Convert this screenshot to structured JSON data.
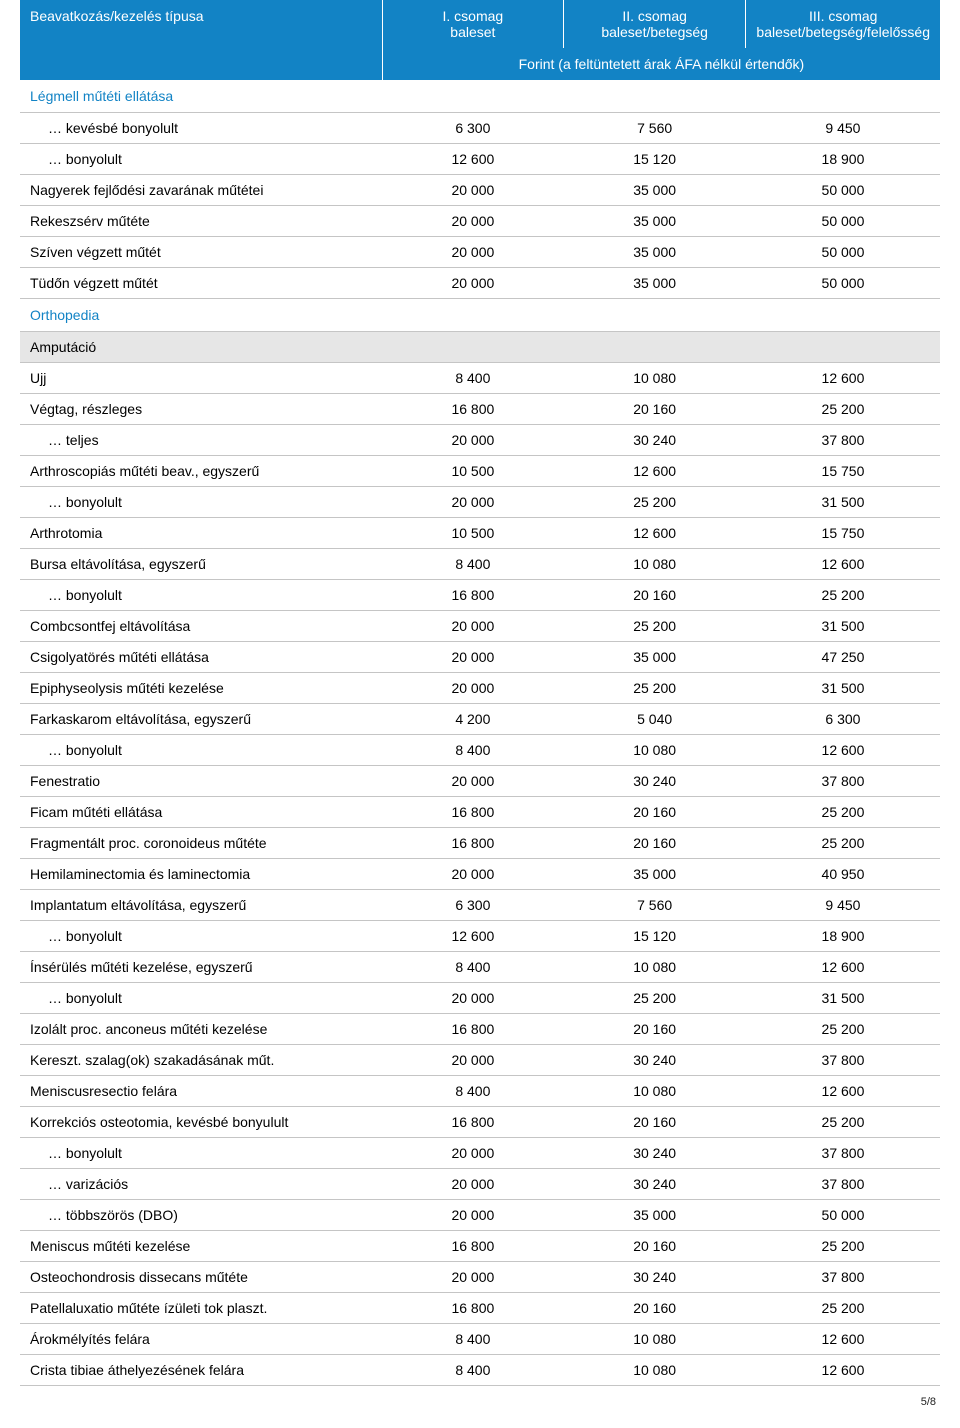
{
  "header": {
    "col0": "Beavatkozás/kezelés típusa",
    "cols": [
      {
        "l1": "I. csomag",
        "l2": "baleset"
      },
      {
        "l1": "II. csomag",
        "l2": "baleset/betegség"
      },
      {
        "l1": "III. csomag",
        "l2": "baleset/betegség/felelősség"
      }
    ],
    "note": "Forint (a feltüntetett árak ÁFA nélkül értendők)"
  },
  "rows": [
    {
      "type": "cat",
      "name": "Légmell műtéti ellátása"
    },
    {
      "type": "d",
      "ind": 1,
      "name": "… kevésbé bonyolult",
      "v": [
        "6 300",
        "7 560",
        "9 450"
      ]
    },
    {
      "type": "d",
      "ind": 1,
      "name": "… bonyolult",
      "v": [
        "12 600",
        "15 120",
        "18 900"
      ]
    },
    {
      "type": "d",
      "name": "Nagyerek fejlődési zavarának műtétei",
      "v": [
        "20 000",
        "35 000",
        "50 000"
      ]
    },
    {
      "type": "d",
      "name": "Rekeszsérv műtéte",
      "v": [
        "20 000",
        "35 000",
        "50 000"
      ]
    },
    {
      "type": "d",
      "name": "Szíven végzett műtét",
      "v": [
        "20 000",
        "35 000",
        "50 000"
      ]
    },
    {
      "type": "d",
      "name": "Tüdőn végzett műtét",
      "v": [
        "20 000",
        "35 000",
        "50 000"
      ]
    },
    {
      "type": "cat",
      "name": "Orthopedia"
    },
    {
      "type": "gray",
      "name": "Amputáció"
    },
    {
      "type": "d",
      "name": "Ujj",
      "v": [
        "8 400",
        "10 080",
        "12 600"
      ]
    },
    {
      "type": "d",
      "name": "Végtag, részleges",
      "v": [
        "16 800",
        "20 160",
        "25 200"
      ]
    },
    {
      "type": "d",
      "ind": 1,
      "name": "… teljes",
      "v": [
        "20 000",
        "30 240",
        "37 800"
      ]
    },
    {
      "type": "d",
      "name": "Arthroscopiás műtéti beav., egyszerű",
      "v": [
        "10 500",
        "12 600",
        "15 750"
      ]
    },
    {
      "type": "d",
      "ind": 1,
      "name": "… bonyolult",
      "v": [
        "20 000",
        "25 200",
        "31 500"
      ]
    },
    {
      "type": "d",
      "name": "Arthrotomia",
      "v": [
        "10 500",
        "12 600",
        "15 750"
      ]
    },
    {
      "type": "d",
      "name": "Bursa eltávolítása, egyszerű",
      "v": [
        "8 400",
        "10 080",
        "12 600"
      ]
    },
    {
      "type": "d",
      "ind": 1,
      "name": "… bonyolult",
      "v": [
        "16 800",
        "20 160",
        "25 200"
      ]
    },
    {
      "type": "d",
      "name": "Combcsontfej eltávolítása",
      "v": [
        "20 000",
        "25 200",
        "31 500"
      ]
    },
    {
      "type": "d",
      "name": "Csigolyatörés műtéti ellátása",
      "v": [
        "20 000",
        "35 000",
        "47 250"
      ]
    },
    {
      "type": "d",
      "name": "Epiphyseolysis műtéti kezelése",
      "v": [
        "20 000",
        "25 200",
        "31 500"
      ]
    },
    {
      "type": "d",
      "name": "Farkaskarom eltávolítása, egyszerű",
      "v": [
        "4 200",
        "5 040",
        "6 300"
      ]
    },
    {
      "type": "d",
      "ind": 1,
      "name": "… bonyolult",
      "v": [
        "8 400",
        "10 080",
        "12 600"
      ]
    },
    {
      "type": "d",
      "name": "Fenestratio",
      "v": [
        "20 000",
        "30 240",
        "37 800"
      ]
    },
    {
      "type": "d",
      "name": "Ficam műtéti ellátása",
      "v": [
        "16 800",
        "20 160",
        "25 200"
      ]
    },
    {
      "type": "d",
      "name": "Fragmentált proc. coronoideus műtéte",
      "v": [
        "16 800",
        "20 160",
        "25 200"
      ]
    },
    {
      "type": "d",
      "name": "Hemilaminectomia és laminectomia",
      "v": [
        "20 000",
        "35 000",
        "40 950"
      ]
    },
    {
      "type": "d",
      "name": "Implantatum eltávolítása, egyszerű",
      "v": [
        "6 300",
        "7 560",
        "9 450"
      ]
    },
    {
      "type": "d",
      "ind": 1,
      "name": "… bonyolult",
      "v": [
        "12 600",
        "15 120",
        "18 900"
      ]
    },
    {
      "type": "d",
      "name": "Ínsérülés műtéti kezelése, egyszerű",
      "v": [
        "8 400",
        "10 080",
        "12 600"
      ]
    },
    {
      "type": "d",
      "ind": 1,
      "name": "… bonyolult",
      "v": [
        "20 000",
        "25 200",
        "31 500"
      ]
    },
    {
      "type": "d",
      "name": "Izolált proc. anconeus műtéti kezelése",
      "v": [
        "16 800",
        "20 160",
        "25 200"
      ]
    },
    {
      "type": "d",
      "name": "Kereszt. szalag(ok) szakadásának műt.",
      "v": [
        "20 000",
        "30 240",
        "37 800"
      ]
    },
    {
      "type": "d",
      "name": "Meniscusresectio felára",
      "v": [
        "8 400",
        "10 080",
        "12 600"
      ]
    },
    {
      "type": "d",
      "name": "Korrekciós osteotomia, kevésbé bonyulult",
      "v": [
        "16 800",
        "20 160",
        "25 200"
      ]
    },
    {
      "type": "d",
      "ind": 1,
      "name": "… bonyolult",
      "v": [
        "20 000",
        "30 240",
        "37 800"
      ]
    },
    {
      "type": "d",
      "ind": 1,
      "name": "… varizációs",
      "v": [
        "20 000",
        "30 240",
        "37 800"
      ]
    },
    {
      "type": "d",
      "ind": 1,
      "name": "… többszörös (DBO)",
      "v": [
        "20 000",
        "35 000",
        "50 000"
      ]
    },
    {
      "type": "d",
      "name": "Meniscus műtéti kezelése",
      "v": [
        "16 800",
        "20 160",
        "25 200"
      ]
    },
    {
      "type": "d",
      "name": "Osteochondrosis dissecans műtéte",
      "v": [
        "20 000",
        "30 240",
        "37 800"
      ]
    },
    {
      "type": "d",
      "name": "Patellaluxatio műtéte ízületi tok plaszt.",
      "v": [
        "16 800",
        "20 160",
        "25 200"
      ]
    },
    {
      "type": "d",
      "name": "Árokmélyítés felára",
      "v": [
        "8 400",
        "10 080",
        "12 600"
      ]
    },
    {
      "type": "d",
      "name": "Crista tibiae áthelyezésének felára",
      "v": [
        "8 400",
        "10 080",
        "12 600"
      ]
    }
  ],
  "footer": "5/8"
}
